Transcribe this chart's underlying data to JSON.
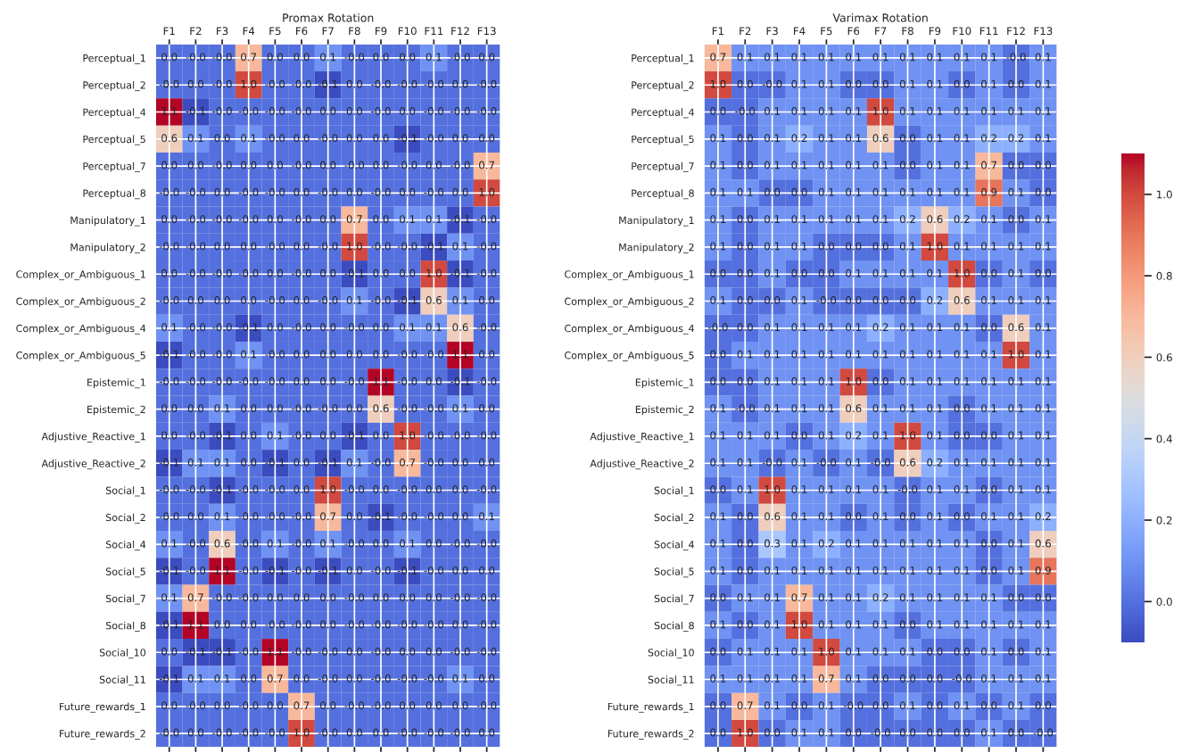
{
  "chart_data": [
    {
      "type": "heatmap",
      "title": "Promax Rotation",
      "grid": true,
      "categories": [
        "F1",
        "F2",
        "F3",
        "F4",
        "F5",
        "F6",
        "F7",
        "F8",
        "F9",
        "F10",
        "F11",
        "F12",
        "F13"
      ],
      "y_categories": [
        "Perceptual_1",
        "Perceptual_2",
        "Perceptual_4",
        "Perceptual_5",
        "Perceptual_7",
        "Perceptual_8",
        "Manipulatory_1",
        "Manipulatory_2",
        "Complex_or_Ambiguous_1",
        "Complex_or_Ambiguous_2",
        "Complex_or_Ambiguous_4",
        "Complex_or_Ambiguous_5",
        "Epistemic_1",
        "Epistemic_2",
        "Adjustive_Reactive_1",
        "Adjustive_Reactive_2",
        "Social_1",
        "Social_2",
        "Social_4",
        "Social_5",
        "Social_7",
        "Social_8",
        "Social_10",
        "Social_11",
        "Future_rewards_1",
        "Future_rewards_2"
      ],
      "cell_labels": [
        [
          "0.0",
          "-0.0",
          "-0.0",
          "0.7",
          "0.0",
          "0.0",
          "0.1",
          "-0.0",
          "0.0",
          "0.0",
          "0.1",
          "-0.0",
          "0.0"
        ],
        [
          "-0.0",
          "0.0",
          "-0.0",
          "1.0",
          "-0.0",
          "-0.0",
          "-0.1",
          "0.0",
          "-0.0",
          "-0.0",
          "-0.0",
          "0.0",
          "-0.0"
        ],
        [
          "1.1",
          "-0.1",
          "-0.0",
          "-0.0",
          "-0.0",
          "-0.0",
          "0.0",
          "0.0",
          "-0.0",
          "0.0",
          "-0.0",
          "-0.0",
          "-0.0"
        ],
        [
          "0.6",
          "0.1",
          "0.0",
          "0.1",
          "-0.0",
          "0.0",
          "-0.0",
          "0.0",
          "0.0",
          "-0.1",
          "-0.0",
          "0.0",
          "0.0"
        ],
        [
          "0.0",
          "0.0",
          "-0.0",
          "0.0",
          "0.0",
          "-0.0",
          "0.0",
          "-0.0",
          "0.0",
          "-0.0",
          "0.0",
          "-0.0",
          "0.7"
        ],
        [
          "-0.0",
          "-0.0",
          "0.0",
          "-0.0",
          "-0.0",
          "0.0",
          "-0.0",
          "0.0",
          "-0.0",
          "0.0",
          "-0.0",
          "0.0",
          "1.0"
        ],
        [
          "0.0",
          "-0.0",
          "-0.0",
          "-0.0",
          "0.0",
          "-0.0",
          "0.0",
          "0.7",
          "0.0",
          "0.1",
          "0.1",
          "-0.1",
          "-0.0"
        ],
        [
          "-0.0",
          "-0.0",
          "0.0",
          "0.0",
          "-0.0",
          "0.0",
          "-0.0",
          "1.0",
          "-0.0",
          "-0.0",
          "-0.1",
          "0.1",
          "-0.0"
        ],
        [
          "0.0",
          "-0.0",
          "-0.0",
          "-0.0",
          "0.0",
          "-0.0",
          "0.0",
          "-0.1",
          "0.0",
          "0.0",
          "1.0",
          "-0.1",
          "-0.0"
        ],
        [
          "-0.0",
          "0.0",
          "0.0",
          "0.0",
          "-0.0",
          "0.0",
          "-0.0",
          "0.1",
          "-0.0",
          "-0.1",
          "0.6",
          "0.1",
          "0.0"
        ],
        [
          "0.1",
          "-0.0",
          "-0.0",
          "-0.1",
          "0.0",
          "-0.0",
          "0.0",
          "-0.0",
          "0.0",
          "0.1",
          "0.1",
          "0.6",
          "-0.0"
        ],
        [
          "-0.1",
          "-0.0",
          "-0.0",
          "0.1",
          "-0.0",
          "0.0",
          "0.0",
          "0.0",
          "0.0",
          "-0.0",
          "-0.0",
          "1.1",
          "0.0"
        ],
        [
          "-0.0",
          "-0.0",
          "-0.0",
          "-0.0",
          "-0.0",
          "0.0",
          "0.0",
          "-0.0",
          "1.1",
          "-0.0",
          "0.0",
          "-0.1",
          "-0.0"
        ],
        [
          "0.0",
          "0.0",
          "0.1",
          "0.0",
          "0.0",
          "-0.0",
          "-0.0",
          "0.0",
          "0.6",
          "-0.0",
          "-0.0",
          "0.1",
          "0.0"
        ],
        [
          "0.0",
          "-0.0",
          "-0.1",
          "0.0",
          "0.1",
          "-0.0",
          "0.0",
          "-0.1",
          "0.0",
          "1.0",
          "-0.0",
          "-0.0",
          "-0.0"
        ],
        [
          "-0.1",
          "0.1",
          "0.1",
          "0.0",
          "-0.1",
          "0.0",
          "-0.1",
          "0.1",
          "-0.0",
          "0.7",
          "-0.0",
          "0.0",
          "0.0"
        ],
        [
          "-0.0",
          "-0.0",
          "-0.1",
          "-0.0",
          "-0.0",
          "0.0",
          "1.0",
          "-0.0",
          "0.0",
          "-0.0",
          "0.0",
          "0.0",
          "-0.0"
        ],
        [
          "-0.0",
          "0.0",
          "0.1",
          "-0.0",
          "-0.0",
          "-0.0",
          "0.7",
          "0.0",
          "-0.1",
          "-0.0",
          "-0.0",
          "0.0",
          "0.1"
        ],
        [
          "0.1",
          "-0.0",
          "0.6",
          "-0.0",
          "0.1",
          "-0.0",
          "0.1",
          "-0.0",
          "0.0",
          "0.1",
          "0.0",
          "-0.0",
          "-0.0"
        ],
        [
          "-0.1",
          "-0.0",
          "1.1",
          "-0.0",
          "-0.1",
          "-0.0",
          "-0.1",
          "0.0",
          "-0.0",
          "-0.1",
          "-0.0",
          "0.0",
          "0.0"
        ],
        [
          "0.1",
          "0.7",
          "-0.0",
          "-0.0",
          "0.0",
          "0.0",
          "0.0",
          "-0.0",
          "0.0",
          "0.0",
          "0.0",
          "-0.0",
          "-0.0"
        ],
        [
          "-0.1",
          "1.1",
          "0.0",
          "0.0",
          "-0.0",
          "-0.0",
          "0.0",
          "-0.0",
          "-0.0",
          "-0.0",
          "-0.0",
          "0.0",
          "-0.0"
        ],
        [
          "0.0",
          "-0.1",
          "-0.1",
          "-0.0",
          "1.1",
          "-0.0",
          "-0.0",
          "0.0",
          "-0.0",
          "0.0",
          "0.0",
          "-0.0",
          "-0.0"
        ],
        [
          "-0.1",
          "0.1",
          "0.1",
          "0.0",
          "0.7",
          "0.0",
          "-0.0",
          "0.0",
          "-0.0",
          "-0.0",
          "-0.0",
          "0.1",
          "0.0"
        ],
        [
          "0.0",
          "-0.0",
          "0.0",
          "-0.0",
          "0.0",
          "0.7",
          "0.0",
          "-0.0",
          "-0.0",
          "0.0",
          "0.0",
          "0.0",
          "-0.0"
        ],
        [
          "-0.0",
          "0.0",
          "-0.0",
          "-0.0",
          "-0.0",
          "1.0",
          "-0.0",
          "0.0",
          "0.0",
          "-0.0",
          "-0.0",
          "-0.0",
          "0.0"
        ]
      ],
      "cells": [
        [
          0.0,
          -0.0,
          -0.0,
          0.7,
          0.0,
          0.0,
          0.1,
          -0.0,
          0.0,
          0.0,
          0.1,
          -0.0,
          0.0
        ],
        [
          -0.0,
          0.0,
          -0.0,
          1.0,
          -0.0,
          -0.0,
          -0.1,
          0.0,
          -0.0,
          -0.0,
          -0.0,
          0.0,
          -0.0
        ],
        [
          1.1,
          -0.1,
          -0.0,
          -0.0,
          -0.0,
          -0.0,
          0.0,
          0.0,
          -0.0,
          0.0,
          -0.0,
          -0.0,
          -0.0
        ],
        [
          0.6,
          0.1,
          0.0,
          0.1,
          -0.0,
          0.0,
          -0.0,
          0.0,
          0.0,
          -0.1,
          -0.0,
          0.0,
          0.0
        ],
        [
          0.0,
          0.0,
          -0.0,
          0.0,
          0.0,
          -0.0,
          0.0,
          -0.0,
          0.0,
          -0.0,
          0.0,
          -0.0,
          0.7
        ],
        [
          -0.0,
          -0.0,
          0.0,
          -0.0,
          -0.0,
          0.0,
          -0.0,
          0.0,
          -0.0,
          0.0,
          -0.0,
          0.0,
          1.0
        ],
        [
          0.0,
          -0.0,
          -0.0,
          -0.0,
          0.0,
          -0.0,
          0.0,
          0.7,
          0.0,
          0.1,
          0.1,
          -0.1,
          -0.0
        ],
        [
          -0.0,
          -0.0,
          0.0,
          0.0,
          -0.0,
          0.0,
          -0.0,
          1.0,
          -0.0,
          -0.0,
          -0.1,
          0.1,
          -0.0
        ],
        [
          0.0,
          -0.0,
          -0.0,
          -0.0,
          0.0,
          -0.0,
          0.0,
          -0.1,
          0.0,
          0.0,
          1.0,
          -0.1,
          -0.0
        ],
        [
          -0.0,
          0.0,
          0.0,
          0.0,
          -0.0,
          0.0,
          -0.0,
          0.1,
          -0.0,
          -0.1,
          0.6,
          0.1,
          0.0
        ],
        [
          0.1,
          -0.0,
          -0.0,
          -0.1,
          0.0,
          -0.0,
          0.0,
          -0.0,
          0.0,
          0.1,
          0.1,
          0.6,
          -0.0
        ],
        [
          -0.1,
          -0.0,
          -0.0,
          0.1,
          -0.0,
          0.0,
          0.0,
          0.0,
          0.0,
          -0.0,
          -0.0,
          1.1,
          0.0
        ],
        [
          -0.0,
          -0.0,
          -0.0,
          -0.0,
          -0.0,
          0.0,
          0.0,
          -0.0,
          1.1,
          -0.0,
          0.0,
          -0.1,
          -0.0
        ],
        [
          0.0,
          0.0,
          0.1,
          0.0,
          0.0,
          -0.0,
          -0.0,
          0.0,
          0.6,
          -0.0,
          -0.0,
          0.1,
          0.0
        ],
        [
          0.0,
          -0.0,
          -0.1,
          0.0,
          0.1,
          -0.0,
          0.0,
          -0.1,
          0.0,
          1.0,
          -0.0,
          -0.0,
          -0.0
        ],
        [
          -0.1,
          0.1,
          0.1,
          0.0,
          -0.1,
          0.0,
          -0.1,
          0.1,
          -0.0,
          0.7,
          -0.0,
          0.0,
          0.0
        ],
        [
          -0.0,
          -0.0,
          -0.1,
          -0.0,
          -0.0,
          0.0,
          1.0,
          -0.0,
          0.0,
          -0.0,
          0.0,
          0.0,
          -0.0
        ],
        [
          -0.0,
          0.0,
          0.1,
          -0.0,
          -0.0,
          -0.0,
          0.7,
          0.0,
          -0.1,
          -0.0,
          -0.0,
          0.0,
          0.1
        ],
        [
          0.1,
          -0.0,
          0.6,
          -0.0,
          0.1,
          -0.0,
          0.1,
          -0.0,
          0.0,
          0.1,
          0.0,
          -0.0,
          -0.0
        ],
        [
          -0.1,
          -0.0,
          1.1,
          -0.0,
          -0.1,
          -0.0,
          -0.1,
          0.0,
          -0.0,
          -0.1,
          -0.0,
          0.0,
          0.0
        ],
        [
          0.1,
          0.7,
          -0.0,
          -0.0,
          0.0,
          0.0,
          0.0,
          -0.0,
          0.0,
          0.0,
          0.0,
          -0.0,
          -0.0
        ],
        [
          -0.1,
          1.1,
          0.0,
          0.0,
          -0.0,
          -0.0,
          0.0,
          -0.0,
          -0.0,
          -0.0,
          -0.0,
          0.0,
          -0.0
        ],
        [
          0.0,
          -0.1,
          -0.1,
          -0.0,
          1.1,
          -0.0,
          -0.0,
          0.0,
          -0.0,
          0.0,
          0.0,
          -0.0,
          -0.0
        ],
        [
          -0.1,
          0.1,
          0.1,
          0.0,
          0.7,
          0.0,
          -0.0,
          0.0,
          -0.0,
          -0.0,
          -0.0,
          0.1,
          0.0
        ],
        [
          0.0,
          -0.0,
          0.0,
          -0.0,
          0.0,
          0.7,
          0.0,
          -0.0,
          -0.0,
          0.0,
          0.0,
          0.0,
          -0.0
        ],
        [
          -0.0,
          0.0,
          -0.0,
          -0.0,
          -0.0,
          1.0,
          -0.0,
          0.0,
          0.0,
          -0.0,
          -0.0,
          -0.0,
          0.0
        ]
      ]
    },
    {
      "type": "heatmap",
      "title": "Varimax Rotation",
      "grid": true,
      "categories": [
        "F1",
        "F2",
        "F3",
        "F4",
        "F5",
        "F6",
        "F7",
        "F8",
        "F9",
        "F10",
        "F11",
        "F12",
        "F13"
      ],
      "y_categories": [
        "Perceptual_1",
        "Perceptual_2",
        "Perceptual_4",
        "Perceptual_5",
        "Perceptual_7",
        "Perceptual_8",
        "Manipulatory_1",
        "Manipulatory_2",
        "Complex_or_Ambiguous_1",
        "Complex_or_Ambiguous_2",
        "Complex_or_Ambiguous_4",
        "Complex_or_Ambiguous_5",
        "Epistemic_1",
        "Epistemic_2",
        "Adjustive_Reactive_1",
        "Adjustive_Reactive_2",
        "Social_1",
        "Social_2",
        "Social_4",
        "Social_5",
        "Social_7",
        "Social_8",
        "Social_10",
        "Social_11",
        "Future_rewards_1",
        "Future_rewards_2"
      ],
      "cell_labels": [
        [
          "0.7",
          "0.1",
          "0.1",
          "0.1",
          "0.1",
          "0.1",
          "0.1",
          "0.1",
          "0.1",
          "0.1",
          "0.1",
          "-0.0",
          "0.1"
        ],
        [
          "1.0",
          "0.0",
          "-0.0",
          "0.1",
          "0.1",
          "0.0",
          "0.0",
          "0.1",
          "0.1",
          "0.0",
          "0.1",
          "0.0",
          "0.1"
        ],
        [
          "0.0",
          "-0.0",
          "0.1",
          "0.1",
          "0.1",
          "0.1",
          "1.0",
          "0.1",
          "0.1",
          "0.1",
          "0.1",
          "0.1",
          "0.1"
        ],
        [
          "0.1",
          "0.0",
          "0.1",
          "0.2",
          "0.1",
          "0.1",
          "0.6",
          "0.0",
          "0.1",
          "0.1",
          "0.2",
          "0.2",
          "0.1"
        ],
        [
          "0.1",
          "0.0",
          "0.1",
          "0.1",
          "0.1",
          "0.1",
          "0.1",
          "0.0",
          "0.1",
          "0.1",
          "0.7",
          "0.0",
          "0.0"
        ],
        [
          "0.1",
          "0.1",
          "0.0",
          "0.0",
          "0.1",
          "0.1",
          "0.1",
          "0.1",
          "0.1",
          "0.1",
          "0.9",
          "0.1",
          "0.0"
        ],
        [
          "0.1",
          "0.0",
          "0.1",
          "0.1",
          "0.1",
          "0.1",
          "0.1",
          "0.2",
          "0.6",
          "0.2",
          "0.1",
          "0.0",
          "0.1"
        ],
        [
          "0.1",
          "0.0",
          "0.1",
          "0.1",
          "0.0",
          "0.0",
          "0.0",
          "0.1",
          "1.0",
          "0.1",
          "0.1",
          "0.1",
          "0.1"
        ],
        [
          "0.0",
          "0.0",
          "0.1",
          "0.0",
          "0.0",
          "0.1",
          "0.1",
          "0.1",
          "0.1",
          "1.0",
          "0.0",
          "0.1",
          "0.0"
        ],
        [
          "0.1",
          "0.0",
          "0.0",
          "0.1",
          "-0.0",
          "0.0",
          "0.0",
          "0.0",
          "0.2",
          "0.6",
          "0.1",
          "0.1",
          "0.1"
        ],
        [
          "-0.0",
          "0.0",
          "0.1",
          "0.1",
          "0.1",
          "0.1",
          "0.2",
          "0.1",
          "0.1",
          "0.1",
          "0.0",
          "0.6",
          "0.1"
        ],
        [
          "0.0",
          "0.1",
          "0.1",
          "0.1",
          "0.1",
          "0.1",
          "0.1",
          "0.1",
          "0.1",
          "0.1",
          "0.1",
          "1.0",
          "0.1"
        ],
        [
          "0.0",
          "0.0",
          "0.1",
          "0.1",
          "0.1",
          "1.0",
          "0.0",
          "0.1",
          "0.1",
          "0.1",
          "0.1",
          "0.1",
          "0.1"
        ],
        [
          "0.1",
          "-0.0",
          "0.1",
          "0.1",
          "0.1",
          "0.6",
          "0.1",
          "0.1",
          "0.1",
          "0.0",
          "0.1",
          "0.1",
          "0.1"
        ],
        [
          "0.1",
          "0.1",
          "0.1",
          "0.0",
          "0.1",
          "0.2",
          "0.1",
          "1.0",
          "0.1",
          "0.0",
          "0.0",
          "0.1",
          "0.1"
        ],
        [
          "0.1",
          "0.1",
          "-0.0",
          "0.1",
          "-0.0",
          "0.1",
          "-0.0",
          "0.6",
          "0.2",
          "0.1",
          "0.1",
          "0.1",
          "0.1"
        ],
        [
          "0.0",
          "0.1",
          "1.0",
          "0.1",
          "0.1",
          "0.1",
          "0.1",
          "-0.0",
          "0.1",
          "0.1",
          "0.0",
          "0.1",
          "0.1"
        ],
        [
          "0.1",
          "0.0",
          "0.6",
          "0.1",
          "0.1",
          "0.0",
          "0.1",
          "0.0",
          "0.1",
          "0.0",
          "0.1",
          "0.1",
          "0.2"
        ],
        [
          "0.1",
          "0.0",
          "0.3",
          "0.1",
          "0.2",
          "0.1",
          "0.1",
          "0.1",
          "0.1",
          "0.1",
          "0.0",
          "0.1",
          "0.6"
        ],
        [
          "0.1",
          "0.0",
          "0.1",
          "0.1",
          "0.1",
          "0.1",
          "0.1",
          "0.1",
          "0.1",
          "0.1",
          "0.0",
          "0.1",
          "0.9"
        ],
        [
          "0.0",
          "0.1",
          "0.1",
          "0.7",
          "0.1",
          "0.1",
          "0.2",
          "0.1",
          "0.1",
          "0.1",
          "0.1",
          "0.0",
          "0.0"
        ],
        [
          "0.1",
          "0.0",
          "0.1",
          "1.0",
          "0.1",
          "0.1",
          "0.1",
          "0.0",
          "0.1",
          "0.1",
          "0.1",
          "0.1",
          "0.1"
        ],
        [
          "0.0",
          "0.1",
          "0.1",
          "0.1",
          "1.0",
          "0.1",
          "0.1",
          "0.1",
          "0.0",
          "0.0",
          "0.1",
          "0.0",
          "0.1"
        ],
        [
          "0.1",
          "0.1",
          "0.1",
          "0.1",
          "0.7",
          "0.1",
          "0.0",
          "0.0",
          "0.0",
          "-0.0",
          "0.1",
          "0.1",
          "0.1"
        ],
        [
          "0.0",
          "0.7",
          "0.1",
          "0.0",
          "0.1",
          "-0.0",
          "0.0",
          "0.1",
          "0.0",
          "0.1",
          "0.0",
          "0.1",
          "0.0"
        ],
        [
          "0.0",
          "1.0",
          "0.0",
          "0.1",
          "0.1",
          "0.0",
          "-0.0",
          "0.0",
          "0.0",
          "0.0",
          "0.1",
          "0.0",
          "-0.0"
        ]
      ],
      "clim": [
        -0.1,
        1.1
      ],
      "cticks": [
        {
          "value": 0,
          "label": "0.0"
        },
        {
          "value": 0.2,
          "label": "0.2"
        },
        {
          "value": 0.4,
          "label": "0.4"
        },
        {
          "value": 0.6,
          "label": "0.6"
        },
        {
          "value": 0.8,
          "label": "0.8"
        },
        {
          "value": 1,
          "label": "1.0"
        }
      ],
      "cells": [
        [
          0.7,
          0.1,
          0.1,
          0.1,
          0.1,
          0.1,
          0.1,
          0.1,
          0.1,
          0.1,
          0.1,
          -0.0,
          0.1
        ],
        [
          1.0,
          0.0,
          -0.0,
          0.1,
          0.1,
          0.0,
          0.0,
          0.1,
          0.1,
          0.0,
          0.1,
          0.0,
          0.1
        ],
        [
          0.0,
          -0.0,
          0.1,
          0.1,
          0.1,
          0.1,
          1.0,
          0.1,
          0.1,
          0.1,
          0.1,
          0.1,
          0.1
        ],
        [
          0.1,
          0.0,
          0.1,
          0.2,
          0.1,
          0.1,
          0.6,
          0.0,
          0.1,
          0.1,
          0.2,
          0.2,
          0.1
        ],
        [
          0.1,
          0.0,
          0.1,
          0.1,
          0.1,
          0.1,
          0.1,
          0.0,
          0.1,
          0.1,
          0.7,
          0.0,
          0.0
        ],
        [
          0.1,
          0.1,
          0.0,
          0.0,
          0.1,
          0.1,
          0.1,
          0.1,
          0.1,
          0.1,
          0.9,
          0.1,
          0.0
        ],
        [
          0.1,
          0.0,
          0.1,
          0.1,
          0.1,
          0.1,
          0.1,
          0.2,
          0.6,
          0.2,
          0.1,
          0.0,
          0.1
        ],
        [
          0.1,
          0.0,
          0.1,
          0.1,
          0.0,
          0.0,
          0.0,
          0.1,
          1.0,
          0.1,
          0.1,
          0.1,
          0.1
        ],
        [
          0.0,
          0.0,
          0.1,
          0.0,
          0.0,
          0.1,
          0.1,
          0.1,
          0.1,
          1.0,
          0.0,
          0.1,
          0.0
        ],
        [
          0.1,
          0.0,
          0.0,
          0.1,
          -0.0,
          0.0,
          0.0,
          0.0,
          0.2,
          0.6,
          0.1,
          0.1,
          0.1
        ],
        [
          -0.0,
          0.0,
          0.1,
          0.1,
          0.1,
          0.1,
          0.2,
          0.1,
          0.1,
          0.1,
          0.0,
          0.6,
          0.1
        ],
        [
          0.0,
          0.1,
          0.1,
          0.1,
          0.1,
          0.1,
          0.1,
          0.1,
          0.1,
          0.1,
          0.1,
          1.0,
          0.1
        ],
        [
          0.0,
          0.0,
          0.1,
          0.1,
          0.1,
          1.0,
          0.0,
          0.1,
          0.1,
          0.1,
          0.1,
          0.1,
          0.1
        ],
        [
          0.1,
          -0.0,
          0.1,
          0.1,
          0.1,
          0.6,
          0.1,
          0.1,
          0.1,
          0.0,
          0.1,
          0.1,
          0.1
        ],
        [
          0.1,
          0.1,
          0.1,
          0.0,
          0.1,
          0.2,
          0.1,
          1.0,
          0.1,
          0.0,
          0.0,
          0.1,
          0.1
        ],
        [
          0.1,
          0.1,
          -0.0,
          0.1,
          -0.0,
          0.1,
          -0.0,
          0.6,
          0.2,
          0.1,
          0.1,
          0.1,
          0.1
        ],
        [
          0.0,
          0.1,
          1.0,
          0.1,
          0.1,
          0.1,
          0.1,
          -0.0,
          0.1,
          0.1,
          0.0,
          0.1,
          0.1
        ],
        [
          0.1,
          0.0,
          0.6,
          0.1,
          0.1,
          0.0,
          0.1,
          0.0,
          0.1,
          0.0,
          0.1,
          0.1,
          0.2
        ],
        [
          0.1,
          0.0,
          0.3,
          0.1,
          0.2,
          0.1,
          0.1,
          0.1,
          0.1,
          0.1,
          0.0,
          0.1,
          0.6
        ],
        [
          0.1,
          0.0,
          0.1,
          0.1,
          0.1,
          0.1,
          0.1,
          0.1,
          0.1,
          0.1,
          0.0,
          0.1,
          0.9
        ],
        [
          0.0,
          0.1,
          0.1,
          0.7,
          0.1,
          0.1,
          0.2,
          0.1,
          0.1,
          0.1,
          0.1,
          0.0,
          0.0
        ],
        [
          0.1,
          0.0,
          0.1,
          1.0,
          0.1,
          0.1,
          0.1,
          0.0,
          0.1,
          0.1,
          0.1,
          0.1,
          0.1
        ],
        [
          0.0,
          0.1,
          0.1,
          0.1,
          1.0,
          0.1,
          0.1,
          0.1,
          0.0,
          0.0,
          0.1,
          0.0,
          0.1
        ],
        [
          0.1,
          0.1,
          0.1,
          0.1,
          0.7,
          0.1,
          0.0,
          0.0,
          0.0,
          -0.0,
          0.1,
          0.1,
          0.1
        ],
        [
          0.0,
          0.7,
          0.1,
          0.0,
          0.1,
          -0.0,
          0.0,
          0.1,
          0.0,
          0.1,
          0.0,
          0.1,
          0.0
        ],
        [
          0.0,
          1.0,
          0.0,
          0.1,
          0.1,
          0.0,
          -0.0,
          0.0,
          0.0,
          0.0,
          0.1,
          0.0,
          -0.0
        ]
      ]
    }
  ]
}
